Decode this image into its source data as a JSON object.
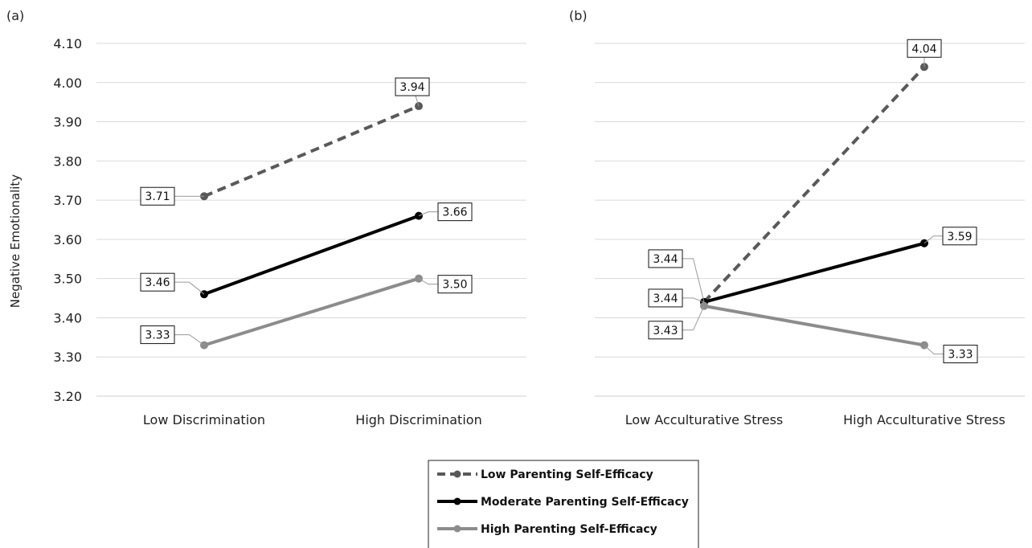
{
  "y_axis_label": "Negative Emotionality",
  "legend": {
    "entries": [
      {
        "label": "Low Parenting Self-Efficacy",
        "color": "#595959",
        "dash": true
      },
      {
        "label": "Moderate Parenting Self-Efficacy",
        "color": "#000000",
        "dash": false
      },
      {
        "label": "High Parenting Self-Efficacy",
        "color": "#8c8c8c",
        "dash": false
      }
    ]
  },
  "chart_data": [
    {
      "panel_label": "(a)",
      "type": "line",
      "categories": [
        "Low Discrimination",
        "High Discrimination"
      ],
      "ylabel": "Negative Emotionality",
      "ylim": [
        3.2,
        4.1
      ],
      "yticks": [
        "3.20",
        "3.30",
        "3.40",
        "3.50",
        "3.60",
        "3.70",
        "3.80",
        "3.90",
        "4.00",
        "4.10"
      ],
      "grid": true,
      "series": [
        {
          "name": "Low Parenting Self-Efficacy",
          "values": [
            3.71,
            3.94
          ],
          "labels": [
            "3.71",
            "3.94"
          ]
        },
        {
          "name": "Moderate Parenting Self-Efficacy",
          "values": [
            3.46,
            3.66
          ],
          "labels": [
            "3.46",
            "3.66"
          ]
        },
        {
          "name": "High Parenting Self-Efficacy",
          "values": [
            3.33,
            3.5
          ],
          "labels": [
            "3.33",
            "3.50"
          ]
        }
      ]
    },
    {
      "panel_label": "(b)",
      "type": "line",
      "categories": [
        "Low Acculturative Stress",
        "High Acculturative Stress"
      ],
      "ylim": [
        3.2,
        4.1
      ],
      "grid": true,
      "series": [
        {
          "name": "Low Parenting Self-Efficacy",
          "values": [
            3.44,
            4.04
          ],
          "labels": [
            "3.44",
            "4.04"
          ]
        },
        {
          "name": "Moderate Parenting Self-Efficacy",
          "values": [
            3.44,
            3.59
          ],
          "labels": [
            "3.44",
            "3.59"
          ]
        },
        {
          "name": "High Parenting Self-Efficacy",
          "values": [
            3.43,
            3.33
          ],
          "labels": [
            "3.43",
            "3.33"
          ]
        }
      ]
    }
  ]
}
